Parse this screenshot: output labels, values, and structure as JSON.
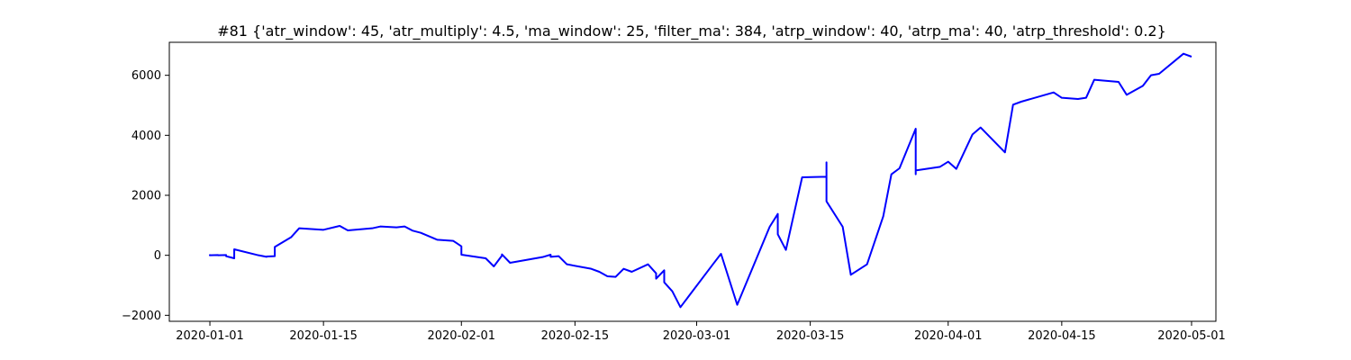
{
  "chart_data": {
    "type": "line",
    "title": "#81 {'atr_window': 45, 'atr_multiply': 4.5, 'ma_window': 25, 'filter_ma': 384, 'atrp_window': 40, 'atrp_ma': 40, 'atrp_threshold': 0.2}",
    "xlabel": "",
    "ylabel": "",
    "x_axis": {
      "type": "date",
      "range": [
        "2019-12-27",
        "2020-05-04"
      ],
      "ticks": [
        "2020-01-01",
        "2020-01-15",
        "2020-02-01",
        "2020-02-15",
        "2020-03-01",
        "2020-03-15",
        "2020-04-01",
        "2020-04-15",
        "2020-05-01"
      ]
    },
    "y_axis": {
      "range": [
        -2200,
        7100
      ],
      "ticks": [
        -2000,
        0,
        2000,
        4000,
        6000
      ]
    },
    "grid": false,
    "legend": "none",
    "series": [
      {
        "color": "#0000ff",
        "points": [
          [
            "2020-01-01",
            -20
          ],
          [
            "2020-01-01",
            10
          ],
          [
            "2020-01-01",
            0
          ],
          [
            "2020-01-02",
            10
          ],
          [
            "2020-01-02",
            0
          ],
          [
            "2020-01-03",
            10
          ],
          [
            "2020-01-03",
            -30
          ],
          [
            "2020-01-04",
            -100
          ],
          [
            "2020-01-04",
            200
          ],
          [
            "2020-01-07",
            0
          ],
          [
            "2020-01-08",
            -50
          ],
          [
            "2020-01-08",
            -40
          ],
          [
            "2020-01-09",
            -30
          ],
          [
            "2020-01-09",
            280
          ],
          [
            "2020-01-11",
            600
          ],
          [
            "2020-01-12",
            900
          ],
          [
            "2020-01-15",
            850
          ],
          [
            "2020-01-17",
            980
          ],
          [
            "2020-01-18",
            830
          ],
          [
            "2020-01-21",
            900
          ],
          [
            "2020-01-22",
            960
          ],
          [
            "2020-01-24",
            930
          ],
          [
            "2020-01-25",
            960
          ],
          [
            "2020-01-26",
            820
          ],
          [
            "2020-01-27",
            750
          ],
          [
            "2020-01-29",
            520
          ],
          [
            "2020-01-31",
            480
          ],
          [
            "2020-02-01",
            300
          ],
          [
            "2020-02-01",
            20
          ],
          [
            "2020-02-04",
            -100
          ],
          [
            "2020-02-05",
            -370
          ],
          [
            "2020-02-06",
            -10
          ],
          [
            "2020-02-06",
            30
          ],
          [
            "2020-02-07",
            -250
          ],
          [
            "2020-02-11",
            -60
          ],
          [
            "2020-02-12",
            20
          ],
          [
            "2020-02-12",
            -50
          ],
          [
            "2020-02-13",
            -30
          ],
          [
            "2020-02-14",
            -300
          ],
          [
            "2020-02-17",
            -450
          ],
          [
            "2020-02-18",
            -550
          ],
          [
            "2020-02-19",
            -700
          ],
          [
            "2020-02-20",
            -720
          ],
          [
            "2020-02-21",
            -450
          ],
          [
            "2020-02-22",
            -550
          ],
          [
            "2020-02-24",
            -300
          ],
          [
            "2020-02-25",
            -600
          ],
          [
            "2020-02-25",
            -780
          ],
          [
            "2020-02-26",
            -500
          ],
          [
            "2020-02-26",
            -900
          ],
          [
            "2020-02-27",
            -1200
          ],
          [
            "2020-02-28",
            -1730
          ],
          [
            "2020-03-03",
            -300
          ],
          [
            "2020-03-04",
            50
          ],
          [
            "2020-03-06",
            -1650
          ],
          [
            "2020-03-10",
            950
          ],
          [
            "2020-03-11",
            1380
          ],
          [
            "2020-03-11",
            700
          ],
          [
            "2020-03-12",
            180
          ],
          [
            "2020-03-14",
            2600
          ],
          [
            "2020-03-17",
            2620
          ],
          [
            "2020-03-17",
            3100
          ],
          [
            "2020-03-17",
            1800
          ],
          [
            "2020-03-19",
            950
          ],
          [
            "2020-03-20",
            -650
          ],
          [
            "2020-03-22",
            -300
          ],
          [
            "2020-03-24",
            1300
          ],
          [
            "2020-03-25",
            2700
          ],
          [
            "2020-03-26",
            2900
          ],
          [
            "2020-03-28",
            4220
          ],
          [
            "2020-03-28",
            2700
          ],
          [
            "2020-03-28",
            2830
          ],
          [
            "2020-03-31",
            2950
          ],
          [
            "2020-04-01",
            3120
          ],
          [
            "2020-04-02",
            2880
          ],
          [
            "2020-04-04",
            4030
          ],
          [
            "2020-04-05",
            4260
          ],
          [
            "2020-04-08",
            3430
          ],
          [
            "2020-04-09",
            5020
          ],
          [
            "2020-04-10",
            5120
          ],
          [
            "2020-04-14",
            5430
          ],
          [
            "2020-04-15",
            5250
          ],
          [
            "2020-04-17",
            5210
          ],
          [
            "2020-04-18",
            5250
          ],
          [
            "2020-04-19",
            5850
          ],
          [
            "2020-04-22",
            5780
          ],
          [
            "2020-04-23",
            5350
          ],
          [
            "2020-04-25",
            5650
          ],
          [
            "2020-04-26",
            6000
          ],
          [
            "2020-04-27",
            6050
          ],
          [
            "2020-04-30",
            6720
          ],
          [
            "2020-05-01",
            6620
          ]
        ]
      }
    ]
  }
}
